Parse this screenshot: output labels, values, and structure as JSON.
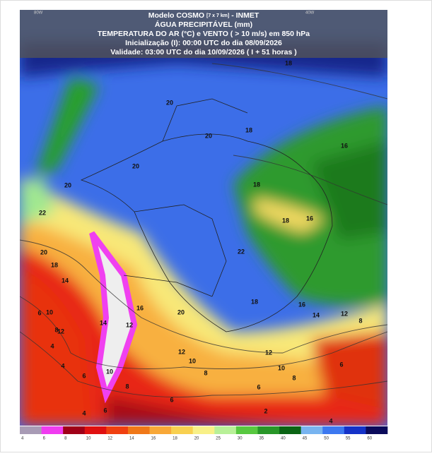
{
  "header": {
    "title_main": "Modelo COSMO",
    "title_res": "[7 x 7 km]",
    "title_source": "- INMET",
    "variable": "ÁGUA PRECIPITÁVEL (mm)",
    "overlay": "TEMPERATURA DO AR (°C) e VENTO ( > 10 m/s) em 850 hPa",
    "init": "Inicialização (I): 00:00 UTC do dia 08/09/2026",
    "valid": "Validade: 03:00 UTC do dia 10/09/2026 ( I + 51 horas )",
    "lon_left": "80W",
    "lon_right": "40W"
  },
  "contour_labels": [
    "18",
    "20",
    "18",
    "20",
    "16",
    "20",
    "20",
    "18",
    "16",
    "22",
    "18",
    "22",
    "20",
    "18",
    "14",
    "16",
    "18",
    "16",
    "14",
    "12",
    "8",
    "20",
    "10",
    "6",
    "8",
    "12",
    "14",
    "12",
    "4",
    "12",
    "10",
    "12",
    "6",
    "10",
    "8",
    "4",
    "10",
    "8",
    "6",
    "8",
    "6",
    "6",
    "4",
    "2",
    "4",
    "6"
  ],
  "colorbar": {
    "labels": [
      "4",
      "6",
      "8",
      "10",
      "12",
      "14",
      "16",
      "18",
      "20",
      "25",
      "30",
      "35",
      "40",
      "45",
      "50",
      "55",
      "60"
    ],
    "colors": [
      "#a89bb5",
      "#f03cf0",
      "#a00018",
      "#e01010",
      "#f04010",
      "#f07818",
      "#f8a838",
      "#f8d050",
      "#f8f088",
      "#b8f098",
      "#58c840",
      "#289628",
      "#0a6414",
      "#78b4f0",
      "#3c78f0",
      "#1432c8",
      "#0a0a5a"
    ]
  }
}
